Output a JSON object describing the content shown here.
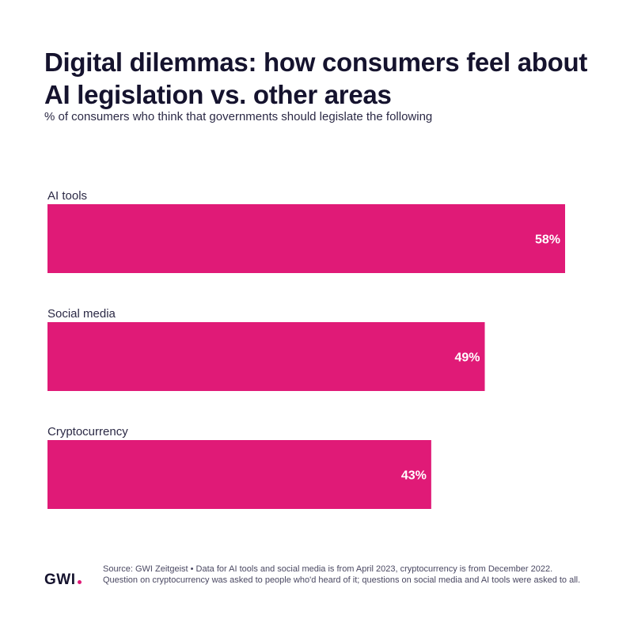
{
  "header": {
    "title": "Digital dilemmas: how consumers feel about AI legislation vs. other areas",
    "subtitle": "% of consumers who think that governments should legislate the following"
  },
  "footer": {
    "logo_text": "GWI",
    "source": "Source: GWI Zeitgeist • Data for AI tools and social media is from April 2023, cryptocurrency is from December 2022. Question on cryptocurrency was asked to people who'd heard of it; questions on social media and AI tools were asked to all."
  },
  "colors": {
    "bar": "#e01a77",
    "logo_dot": "#e01a77"
  },
  "chart_data": {
    "type": "bar",
    "orientation": "horizontal",
    "title": "Digital dilemmas: how consumers feel about AI legislation vs. other areas",
    "subtitle": "% of consumers who think that governments should legislate the following",
    "categories": [
      "AI tools",
      "Social media",
      "Cryptocurrency"
    ],
    "values": [
      58,
      49,
      43
    ],
    "value_labels": [
      "58%",
      "49%",
      "43%"
    ],
    "unit": "%",
    "xlim": [
      0,
      58
    ],
    "grid": false,
    "legend": "none"
  }
}
